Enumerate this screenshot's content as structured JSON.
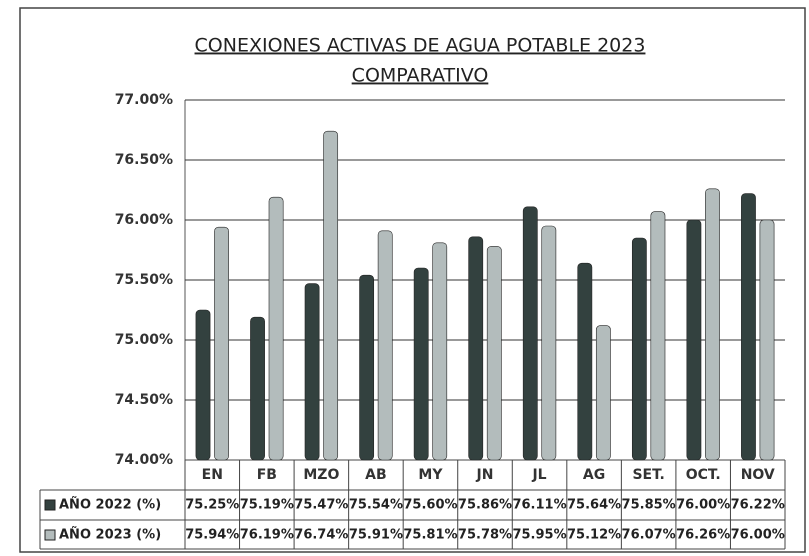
{
  "chart_data": {
    "type": "bar",
    "title": "CONEXIONES ACTIVAS DE AGUA POTABLE 2023",
    "subtitle": "COMPARATIVO",
    "categories": [
      "EN",
      "FB",
      "MZO",
      "AB",
      "MY",
      "JN",
      "JL",
      "AG",
      "SET.",
      "OCT.",
      "NOV"
    ],
    "series": [
      {
        "name": "AÑO 2022 (%)",
        "color": "#33413f",
        "values": [
          75.25,
          75.19,
          75.47,
          75.54,
          75.6,
          75.86,
          76.11,
          75.64,
          75.85,
          76.0,
          76.22
        ],
        "value_labels": [
          "75.25%",
          "75.19%",
          "75.47%",
          "75.54%",
          "75.60%",
          "75.86%",
          "76.11%",
          "75.64%",
          "75.85%",
          "76.00%",
          "76.22%"
        ]
      },
      {
        "name": "AÑO 2023 (%)",
        "color": "#b3bcbc",
        "values": [
          75.94,
          76.19,
          76.74,
          75.91,
          75.81,
          75.78,
          75.95,
          75.12,
          76.07,
          76.26,
          76.0
        ],
        "value_labels": [
          "75.94%",
          "76.19%",
          "76.74%",
          "75.91%",
          "75.81%",
          "75.78%",
          "75.95%",
          "75.12%",
          "76.07%",
          "76.26%",
          "76.00%"
        ]
      }
    ],
    "ylim": [
      74,
      77
    ],
    "yticks": [
      {
        "value": 74,
        "label": "74.00%"
      },
      {
        "value": 74.5,
        "label": "74.50%"
      },
      {
        "value": 75,
        "label": "75.00%"
      },
      {
        "value": 75.5,
        "label": "75.50%"
      },
      {
        "value": 76,
        "label": "76.00%"
      },
      {
        "value": 76.5,
        "label": "76.50%"
      },
      {
        "value": 77,
        "label": "77.00%"
      }
    ],
    "grid": true
  }
}
